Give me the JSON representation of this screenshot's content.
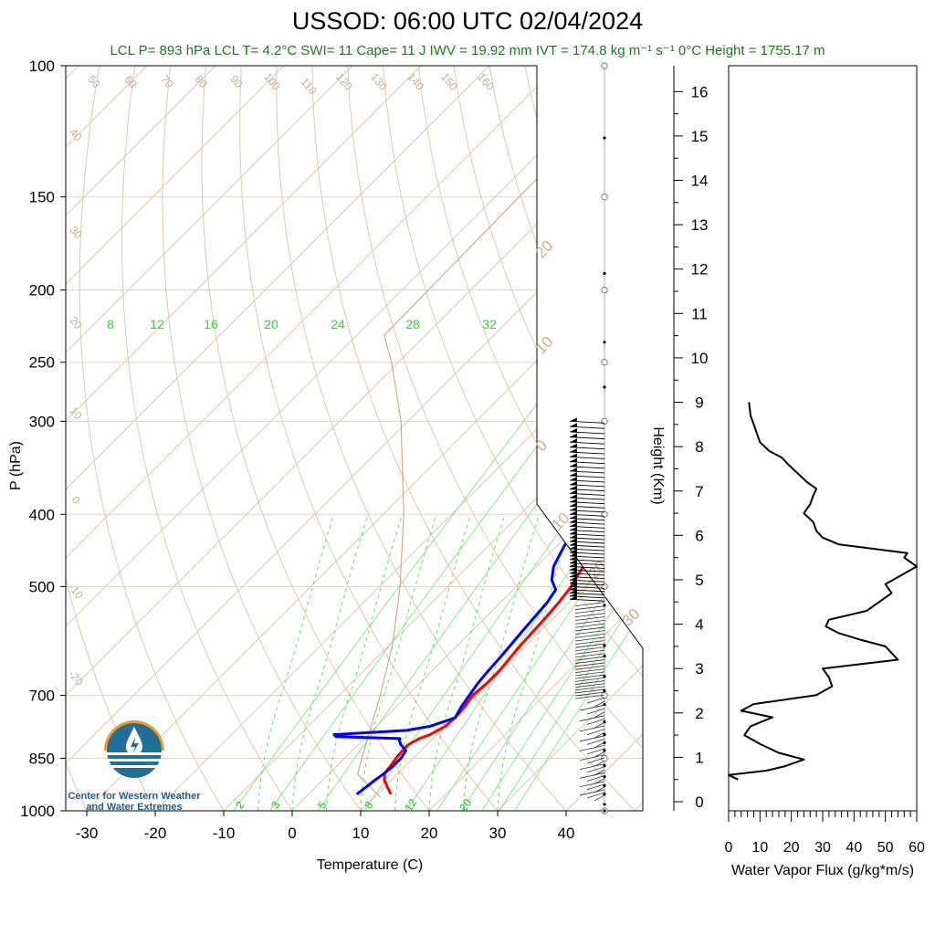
{
  "title": "USSOD: 06:00 UTC 02/04/2024",
  "subtitle": "LCL P= 893 hPa  LCL T= 4.2°C  SWI= 11  Cape= 11 J  IWV = 19.92 mm  IVT = 174.8 kg m⁻¹ s⁻¹  0°C Height = 1755.17 m",
  "logo_text": [
    "Center for Western Weather",
    "and Water Extremes"
  ],
  "colors": {
    "temperature": "#ff0000",
    "dewpoint": "#0000ff",
    "dry_adiabat": "#c9ad8a",
    "mixing_ratio": "#22dd22",
    "parcel": "#c9ad8a",
    "flux": "#000000"
  },
  "chart_data": [
    {
      "type": "line",
      "title": "USSOD: 06:00 UTC 02/04/2024",
      "xlabel": "Temperature (C)",
      "ylabel": "P (hPa)",
      "y_scale": "log",
      "xlim": [
        -34,
        50
      ],
      "ylim": [
        1000,
        100
      ],
      "x_ticks": [
        -30,
        -20,
        -10,
        0,
        10,
        20,
        30,
        40
      ],
      "y_ticks": [
        1000,
        850,
        700,
        500,
        400,
        300,
        250,
        200,
        150,
        100
      ],
      "isotherm_labels": [
        -20,
        -10,
        0,
        10,
        20,
        30
      ],
      "dry_adiabat_labels": [
        -20,
        -10,
        0,
        10,
        20,
        30,
        40,
        50,
        60,
        70,
        80,
        90,
        100,
        110,
        120,
        130,
        140,
        150,
        160
      ],
      "mixing_ratio_labels": [
        8,
        12,
        16,
        20,
        24,
        28,
        32
      ],
      "mixing_ratio_labels_bottom": [
        2,
        3,
        5,
        8,
        12,
        20
      ],
      "series": [
        {
          "name": "Temperature",
          "p": [
            950,
            930,
            910,
            890,
            870,
            850,
            830,
            815,
            800,
            790,
            780,
            770,
            750,
            725,
            700,
            675,
            650,
            625,
            600,
            575,
            550,
            525,
            500,
            480,
            460,
            440,
            420,
            400,
            380,
            360,
            340,
            320,
            310,
            305
          ],
          "t": [
            12,
            10.5,
            9,
            8,
            7.8,
            7.5,
            7.3,
            7.3,
            8,
            9,
            9.5,
            10,
            10.2,
            10,
            9.5,
            9.8,
            9.8,
            9.5,
            9.2,
            9,
            8.8,
            8.5,
            8,
            7.2,
            6.5,
            5.5,
            4.5,
            3.2,
            2,
            0.5,
            -0.8,
            -1.5,
            -1.2,
            -0.9
          ]
        },
        {
          "name": "Dewpoint",
          "p": [
            950,
            930,
            910,
            890,
            870,
            850,
            830,
            815,
            805,
            800,
            795,
            790,
            780,
            770,
            750,
            725,
            700,
            675,
            650,
            625,
            600,
            575,
            550,
            525,
            505,
            490,
            470,
            450,
            430,
            420,
            410,
            400,
            395,
            385,
            375,
            370,
            360,
            350,
            340,
            330,
            320,
            310,
            300
          ],
          "t": [
            7,
            7.3,
            7.6,
            8,
            8.2,
            8.2,
            7.8,
            6.2,
            5.4,
            5.2,
            -4.5,
            -5,
            5,
            7.8,
            10.2,
            9.5,
            9,
            8.5,
            8.2,
            8,
            7.7,
            7.4,
            7.1,
            6.8,
            6.2,
            4.2,
            2.5,
            1.5,
            0.5,
            -0.5,
            -0.2,
            2.8,
            2.8,
            1.2,
            1.5,
            -1.5,
            -5.5,
            -7,
            -8.5,
            -9.5,
            -11.5,
            -11.2,
            -11.8
          ]
        },
        {
          "name": "Parcel",
          "p": [
            960,
            893,
            850,
            700,
            600,
            500,
            400,
            300,
            250,
            230,
            100
          ],
          "t": [
            11,
            4.2,
            2.5,
            -4,
            -9.5,
            -17,
            -27,
            -41,
            -51,
            -56,
            -57
          ]
        }
      ]
    },
    {
      "type": "line",
      "xlabel": "Water Vapor Flux (g/kg*m/s)",
      "ylabel": "Height (Km)",
      "xlim": [
        0,
        60
      ],
      "ylim": [
        0,
        16.5
      ],
      "x_ticks": [
        0,
        10,
        20,
        30,
        40,
        50,
        60
      ],
      "y_ticks": [
        0,
        1,
        2,
        3,
        4,
        5,
        6,
        7,
        8,
        9,
        10,
        11,
        12,
        13,
        14,
        15,
        16
      ],
      "series": [
        {
          "name": "Water Vapor Flux",
          "h": [
            0.5,
            0.6,
            0.7,
            0.8,
            0.95,
            1.1,
            1.3,
            1.5,
            1.7,
            1.9,
            2.05,
            2.2,
            2.4,
            2.6,
            2.8,
            3.0,
            3.2,
            3.35,
            3.5,
            3.65,
            3.8,
            3.95,
            4.1,
            4.3,
            4.5,
            4.7,
            4.9,
            5.1,
            5.3,
            5.4,
            5.5,
            5.6,
            5.8,
            5.95,
            6.1,
            6.3,
            6.5,
            6.7,
            6.9,
            7.05,
            7.2,
            7.4,
            7.6,
            7.75,
            7.9,
            8.1,
            8.3,
            8.5,
            8.7,
            9.0
          ],
          "v": [
            3,
            0,
            12,
            18,
            24,
            16,
            10,
            5,
            7,
            14,
            4,
            8,
            28,
            33,
            32,
            30,
            54,
            52,
            50,
            42,
            35,
            31,
            32,
            44,
            48,
            52,
            50,
            55,
            60,
            58,
            56,
            57,
            35,
            30,
            28,
            27,
            24,
            26,
            27,
            28,
            25,
            22,
            19,
            17,
            13,
            10,
            9,
            8,
            7,
            6.5
          ]
        }
      ]
    }
  ]
}
